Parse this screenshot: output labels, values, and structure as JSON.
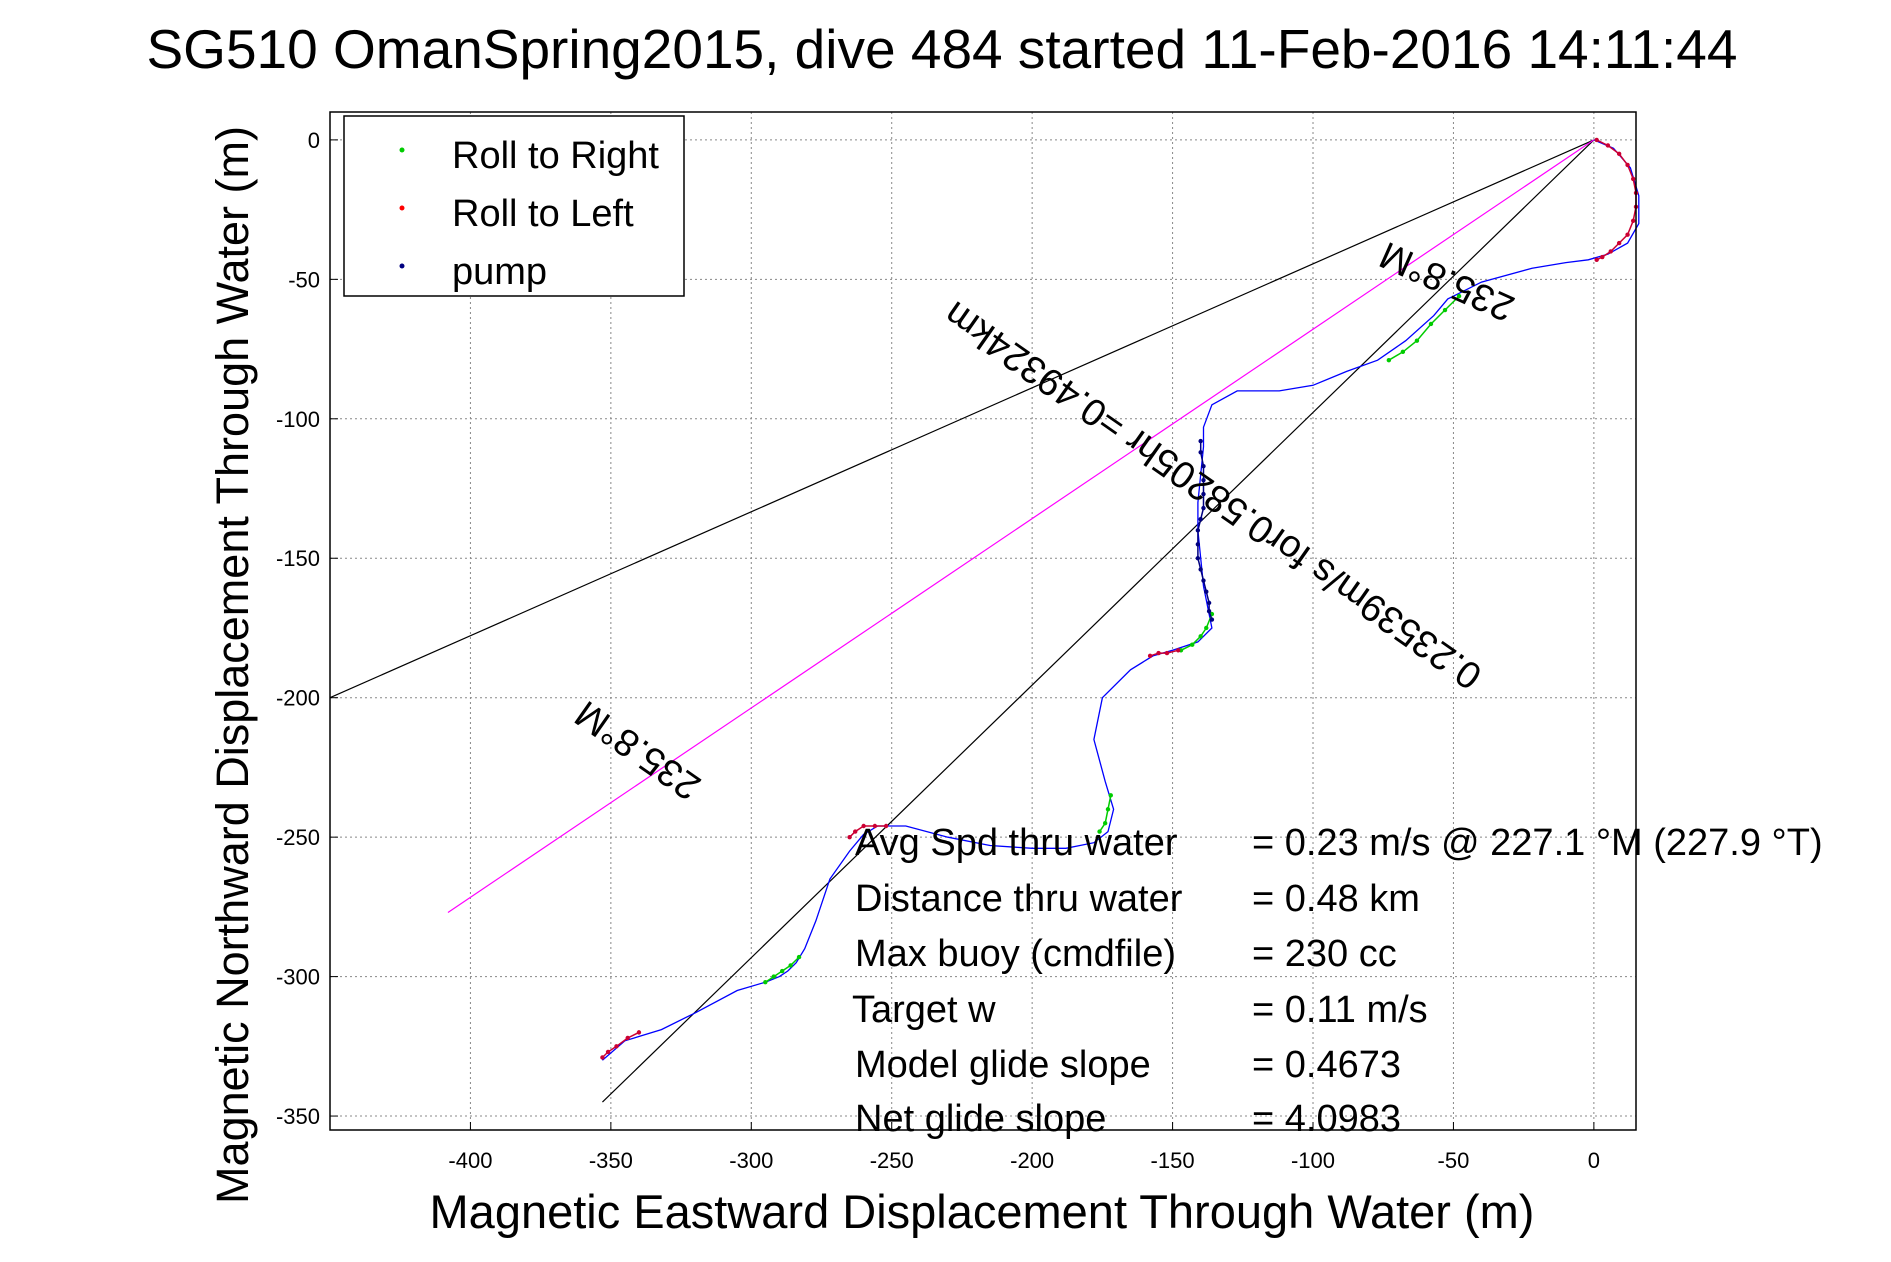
{
  "chart_data": {
    "type": "line",
    "title": "SG510 OmanSpring2015, dive 484 started 11-Feb-2016 14:11:44",
    "xlabel": "Magnetic Eastward Displacement Through Water (m)",
    "ylabel": "Magnetic Northward Displacement Through Water (m)",
    "xlim": [
      -450,
      15
    ],
    "ylim": [
      -355,
      10
    ],
    "x_ticks": [
      -400,
      -350,
      -300,
      -250,
      -200,
      -150,
      -100,
      -50,
      0
    ],
    "y_ticks": [
      0,
      -50,
      -100,
      -150,
      -200,
      -250,
      -300,
      -350
    ],
    "grid": "dotted",
    "legend_placement": "top-left",
    "legend": [
      {
        "label": "Roll to Right",
        "color": "#00cc00"
      },
      {
        "label": "Roll to Left",
        "color": "#ff0000"
      },
      {
        "label": "pump",
        "color": "#000080"
      }
    ],
    "track": {
      "name": "",
      "color": "#0000ff",
      "x": [
        0,
        7,
        13,
        16,
        16,
        12,
        5,
        -2,
        -10,
        -22,
        -40,
        -48,
        -52,
        -57,
        -67,
        -77,
        -88,
        -100,
        -112,
        -127,
        -136,
        -139,
        -139,
        -140,
        -141,
        -141,
        -140,
        -139,
        -137,
        -136,
        -141,
        -150,
        -157,
        -165,
        -175,
        -178,
        -174,
        -171,
        -173,
        -178,
        -188,
        -200,
        -215,
        -230,
        -245,
        -255,
        -260,
        -265,
        -272,
        -277,
        -281,
        -284,
        -287,
        -290,
        -295,
        -305,
        -320,
        -332,
        -345,
        -353
      ],
      "y": [
        0,
        -3,
        -10,
        -20,
        -30,
        -37,
        -41,
        -43,
        -44,
        -46,
        -51,
        -55,
        -57,
        -63,
        -72,
        -79,
        -83,
        -88,
        -90,
        -90,
        -95,
        -103,
        -110,
        -120,
        -130,
        -140,
        -150,
        -160,
        -170,
        -175,
        -180,
        -183,
        -185,
        -190,
        -200,
        -215,
        -230,
        -240,
        -248,
        -252,
        -254,
        -254,
        -253,
        -250,
        -246,
        -246,
        -249,
        -255,
        -265,
        -280,
        -290,
        -295,
        -298,
        -300,
        -302,
        -305,
        -313,
        -319,
        -323,
        -330
      ]
    },
    "roll_right": [
      {
        "x": [
          -48,
          -53,
          -58,
          -63,
          -68,
          -73
        ],
        "y": [
          -56,
          -61,
          -66,
          -72,
          -76,
          -79
        ]
      },
      {
        "x": [
          -136,
          -138,
          -140,
          -143,
          -147
        ],
        "y": [
          -170,
          -175,
          -178,
          -181,
          -183
        ]
      },
      {
        "x": [
          -172,
          -173,
          -174,
          -176
        ],
        "y": [
          -235,
          -240,
          -245,
          -248
        ]
      },
      {
        "x": [
          -283,
          -286,
          -289,
          -292,
          -295
        ],
        "y": [
          -293,
          -296,
          -298,
          -300,
          -302
        ]
      }
    ],
    "roll_left": [
      {
        "x": [
          1,
          5,
          9,
          12,
          14,
          15,
          15,
          14,
          12,
          9,
          6,
          3,
          1
        ],
        "y": [
          0,
          -2,
          -5,
          -9,
          -14,
          -19,
          -24,
          -29,
          -34,
          -37,
          -40,
          -42,
          -43
        ]
      },
      {
        "x": [
          -148,
          -152,
          -155,
          -158
        ],
        "y": [
          -183,
          -184,
          -184,
          -185
        ]
      },
      {
        "x": [
          -252,
          -256,
          -260,
          -263,
          -265
        ],
        "y": [
          -246,
          -246,
          -246,
          -248,
          -250
        ]
      },
      {
        "x": [
          -340,
          -344,
          -348,
          -351,
          -353
        ],
        "y": [
          -320,
          -322,
          -325,
          -327,
          -329
        ]
      }
    ],
    "pump": [
      {
        "x": [
          -140,
          -140,
          -139,
          -139,
          -139,
          -139,
          -140,
          -141,
          -141,
          -141,
          -140,
          -139,
          -138,
          -137,
          -137,
          -136
        ],
        "y": [
          -108,
          -112,
          -117,
          -122,
          -127,
          -132,
          -136,
          -140,
          -145,
          -150,
          -154,
          -158,
          -162,
          -166,
          -169,
          -172
        ]
      }
    ],
    "lines": [
      {
        "name": "235.8°M upper",
        "color": "#000000",
        "x": [
          0,
          -450
        ],
        "y": [
          0,
          -200
        ]
      },
      {
        "name": "235.8°M lower",
        "color": "#000000",
        "x": [
          0,
          -353
        ],
        "y": [
          0,
          -345
        ]
      },
      {
        "name": "average track",
        "color": "#ff00ff",
        "x": [
          0,
          -408
        ],
        "y": [
          0,
          -277
        ]
      }
    ],
    "annotations": [
      {
        "text": "235.8°M",
        "position": "upper line near origin, rotated"
      },
      {
        "text": "0.23539m/s for0.58205hr =0.49324km",
        "position": "along average line, rotated"
      },
      {
        "text": "235.8°M",
        "position": "left, along average line, rotated"
      }
    ],
    "stats": [
      {
        "label": "Avg Spd thru water",
        "value": "=  0.23 m/s @ 227.1 °M (227.9 °T)"
      },
      {
        "label": "Distance thru water",
        "value": "=  0.48 km"
      },
      {
        "label": "Max buoy (cmdfile)",
        "value": "= 230 cc"
      },
      {
        "label": "Target w",
        "value": "= 0.11 m/s"
      },
      {
        "label": "Model glide slope",
        "value": "= 0.4673"
      },
      {
        "label": "Net glide slope",
        "value": "= 4.0983"
      }
    ]
  }
}
